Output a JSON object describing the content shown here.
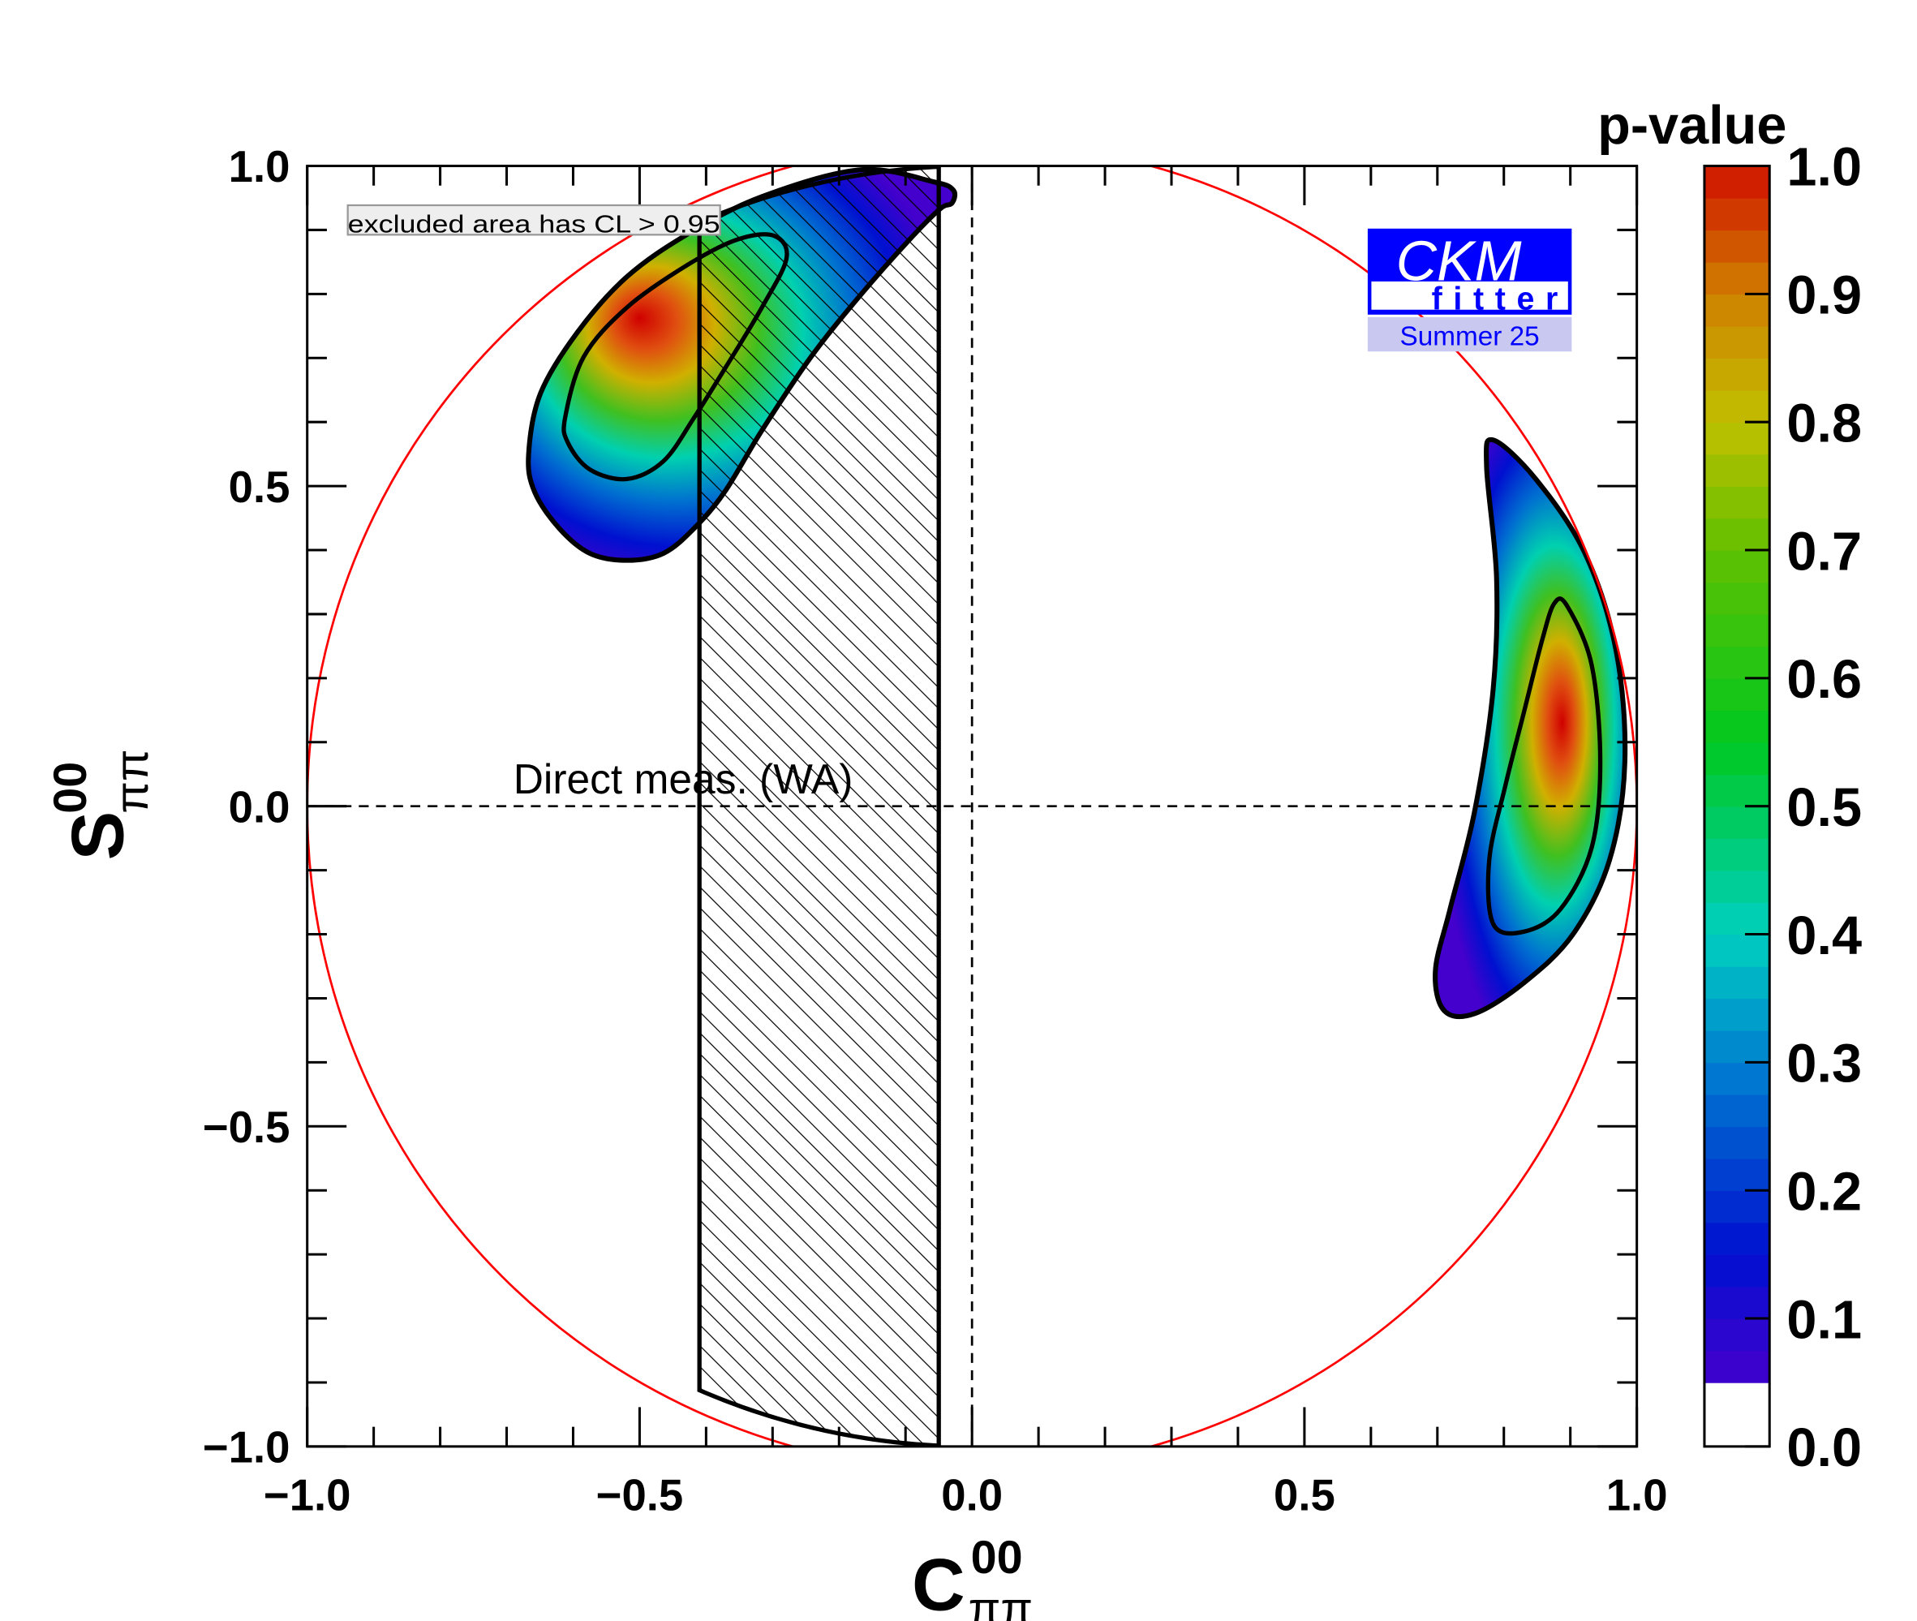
{
  "chart_data": {
    "type": "heatmap",
    "subtype": "filled-contour",
    "xlabel": {
      "main": "C",
      "sup": "00",
      "sub": "ππ"
    },
    "ylabel": {
      "main": "S",
      "sup": "00",
      "sub": "ππ"
    },
    "xlim": [
      -1.0,
      1.0
    ],
    "ylim": [
      -1.0,
      1.0
    ],
    "x_ticks": [
      -1.0,
      -0.5,
      0.0,
      0.5,
      1.0
    ],
    "x_tick_labels": [
      "−1.0",
      "−0.5",
      "0.0",
      "0.5",
      "1.0"
    ],
    "y_ticks": [
      -1.0,
      -0.5,
      0.0,
      0.5,
      1.0
    ],
    "y_tick_labels": [
      "−1.0",
      "−0.5",
      "0.0",
      "0.5",
      "1.0"
    ],
    "minor_tick_step": 0.1,
    "colorbar": {
      "title": "p-value",
      "range": [
        0.0,
        1.0
      ],
      "ticks": [
        0.0,
        0.1,
        0.2,
        0.3,
        0.4,
        0.5,
        0.6,
        0.7,
        0.8,
        0.9,
        1.0
      ],
      "tick_labels": [
        "0.0",
        "0.1",
        "0.2",
        "0.3",
        "0.4",
        "0.5",
        "0.6",
        "0.7",
        "0.8",
        "0.9",
        "1.0"
      ],
      "white_below": 0.05,
      "levels": 38
    },
    "physical_boundary": {
      "shape": "circle",
      "equation": "C^2 + S^2 = 1",
      "color": "#ff0000"
    },
    "reference_lines": [
      {
        "axis": "x",
        "value": 0.0,
        "style": "dashed"
      },
      {
        "axis": "y",
        "value": 0.0,
        "style": "dashed"
      }
    ],
    "regions": [
      {
        "name": "solution-1",
        "peak": [
          -0.49,
          0.72
        ],
        "peak_pvalue": 1.0,
        "outer_contour_cl": 0.05,
        "outer": [
          [
            -0.667,
            0.549
          ],
          [
            -0.649,
            0.645
          ],
          [
            -0.593,
            0.741
          ],
          [
            -0.519,
            0.827
          ],
          [
            -0.427,
            0.894
          ],
          [
            -0.316,
            0.952
          ],
          [
            -0.168,
            0.994
          ],
          [
            -0.057,
            0.975
          ],
          [
            -0.028,
            0.962
          ],
          [
            -0.03,
            0.942
          ],
          [
            -0.048,
            0.933
          ],
          [
            -0.094,
            0.885
          ],
          [
            -0.168,
            0.798
          ],
          [
            -0.242,
            0.702
          ],
          [
            -0.316,
            0.587
          ],
          [
            -0.372,
            0.491
          ],
          [
            -0.418,
            0.434
          ],
          [
            -0.464,
            0.395
          ],
          [
            -0.519,
            0.384
          ],
          [
            -0.575,
            0.395
          ],
          [
            -0.621,
            0.434
          ],
          [
            -0.658,
            0.491
          ]
        ],
        "inner_contour_cl": 0.32,
        "inner": [
          [
            -0.612,
            0.607
          ],
          [
            -0.584,
            0.702
          ],
          [
            -0.519,
            0.779
          ],
          [
            -0.427,
            0.846
          ],
          [
            -0.353,
            0.885
          ],
          [
            -0.298,
            0.891
          ],
          [
            -0.279,
            0.856
          ],
          [
            -0.316,
            0.779
          ],
          [
            -0.372,
            0.683
          ],
          [
            -0.418,
            0.607
          ],
          [
            -0.464,
            0.539
          ],
          [
            -0.519,
            0.511
          ],
          [
            -0.575,
            0.526
          ],
          [
            -0.608,
            0.568
          ]
        ]
      },
      {
        "name": "solution-2",
        "peak": [
          0.88,
          0.06
        ],
        "peak_pvalue": 1.0,
        "outer_contour_cl": 0.05,
        "outer": [
          [
            0.784,
            0.572
          ],
          [
            0.848,
            0.511
          ],
          [
            0.922,
            0.395
          ],
          [
            0.969,
            0.242
          ],
          [
            0.982,
            0.069
          ],
          [
            0.959,
            -0.084
          ],
          [
            0.904,
            -0.2
          ],
          [
            0.83,
            -0.276
          ],
          [
            0.756,
            -0.324
          ],
          [
            0.71,
            -0.319
          ],
          [
            0.697,
            -0.257
          ],
          [
            0.719,
            -0.161
          ],
          [
            0.756,
            -0.008
          ],
          [
            0.784,
            0.184
          ],
          [
            0.789,
            0.357
          ],
          [
            0.774,
            0.53
          ]
        ],
        "inner_contour_cl": 0.32,
        "inner": [
          [
            0.876,
            0.317
          ],
          [
            0.895,
            0.313
          ],
          [
            0.932,
            0.221
          ],
          [
            0.945,
            0.069
          ],
          [
            0.932,
            -0.065
          ],
          [
            0.885,
            -0.161
          ],
          [
            0.83,
            -0.196
          ],
          [
            0.784,
            -0.184
          ],
          [
            0.778,
            -0.084
          ],
          [
            0.802,
            0.031
          ],
          [
            0.83,
            0.146
          ],
          [
            0.858,
            0.261
          ]
        ]
      }
    ],
    "excluded_band": {
      "label": "Direct meas. (WA)",
      "C_range": [
        -0.41,
        -0.05
      ],
      "label_position": [
        -0.69,
        0.02
      ]
    },
    "legend": {
      "text": "excluded area has CL > 0.95",
      "placement": "top-left"
    }
  },
  "logo": {
    "line1": "CKM",
    "line2": "fitter",
    "line3": "Summer 25",
    "color": "#0000ff",
    "band_color": "#c8c8f0"
  }
}
